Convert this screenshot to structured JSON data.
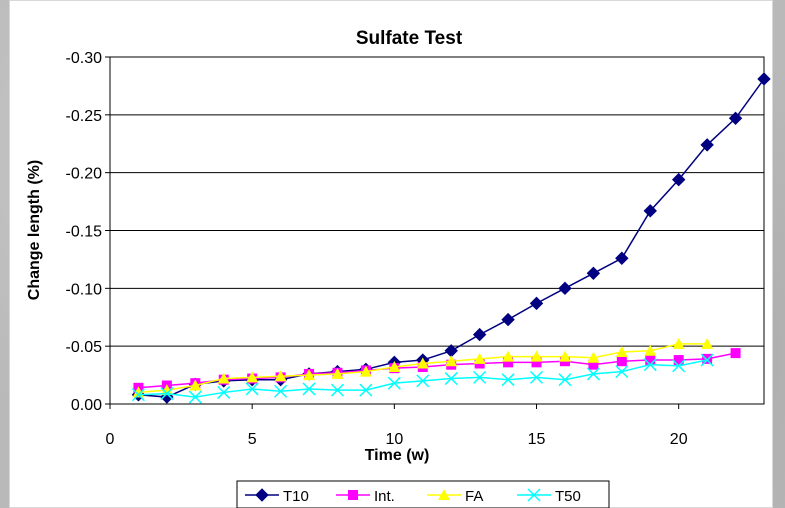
{
  "chart_data": {
    "type": "line",
    "title": "Sulfate Test",
    "xlabel": "Time (w)",
    "ylabel": "Change length (%)",
    "xlim": [
      0,
      23
    ],
    "ylim": [
      0,
      -0.3
    ],
    "y_axis_reversed": true,
    "x_ticks": [
      0,
      5,
      10,
      15,
      20
    ],
    "x_tick_labels": [
      "0",
      "5",
      "10",
      "15",
      "20"
    ],
    "y_ticks": [
      0,
      -0.05,
      -0.1,
      -0.15,
      -0.2,
      -0.25,
      -0.3
    ],
    "y_tick_labels": [
      "0.00",
      "-0.05",
      "-0.10",
      "-0.15",
      "-0.20",
      "-0.25",
      "-0.30"
    ],
    "grid": "horizontal",
    "legend_position": "bottom",
    "series": [
      {
        "name": "T10",
        "color": "#000080",
        "marker": "diamond",
        "x": [
          1,
          2,
          3,
          4,
          5,
          6,
          7,
          8,
          9,
          10,
          11,
          12,
          13,
          14,
          15,
          16,
          17,
          18,
          19,
          20,
          21,
          22,
          23
        ],
        "y": [
          -0.008,
          -0.006,
          -0.017,
          -0.02,
          -0.021,
          -0.021,
          -0.026,
          -0.028,
          -0.03,
          -0.036,
          -0.038,
          -0.046,
          -0.06,
          -0.073,
          -0.087,
          -0.1,
          -0.113,
          -0.126,
          -0.167,
          -0.194,
          -0.224,
          -0.247,
          -0.281
        ]
      },
      {
        "name": "Int.",
        "color": "#ff00ff",
        "marker": "square",
        "x": [
          1,
          2,
          3,
          4,
          5,
          6,
          7,
          8,
          9,
          10,
          11,
          12,
          13,
          14,
          15,
          16,
          17,
          18,
          19,
          20,
          21,
          22
        ],
        "y": [
          -0.014,
          -0.016,
          -0.018,
          -0.021,
          -0.022,
          -0.023,
          -0.026,
          -0.027,
          -0.029,
          -0.031,
          -0.032,
          -0.034,
          -0.035,
          -0.036,
          -0.036,
          -0.037,
          -0.034,
          -0.037,
          -0.038,
          -0.038,
          -0.039,
          -0.044
        ]
      },
      {
        "name": "FA",
        "color": "#ffff00",
        "marker": "triangle",
        "x": [
          1,
          2,
          3,
          4,
          5,
          6,
          7,
          8,
          9,
          10,
          11,
          12,
          13,
          14,
          15,
          16,
          17,
          18,
          19,
          20,
          21
        ],
        "y": [
          -0.01,
          -0.012,
          -0.016,
          -0.022,
          -0.023,
          -0.024,
          -0.025,
          -0.026,
          -0.028,
          -0.032,
          -0.035,
          -0.037,
          -0.039,
          -0.041,
          -0.041,
          -0.041,
          -0.04,
          -0.045,
          -0.046,
          -0.052,
          -0.052
        ]
      },
      {
        "name": "T50",
        "color": "#00ffff",
        "marker": "x",
        "x": [
          1,
          2,
          3,
          4,
          5,
          6,
          7,
          8,
          9,
          10,
          11,
          12,
          13,
          14,
          15,
          16,
          17,
          18,
          19,
          20,
          21
        ],
        "y": [
          -0.008,
          -0.009,
          -0.006,
          -0.01,
          -0.013,
          -0.011,
          -0.013,
          -0.012,
          -0.012,
          -0.018,
          -0.02,
          -0.022,
          -0.023,
          -0.021,
          -0.023,
          -0.021,
          -0.026,
          -0.028,
          -0.034,
          -0.033,
          -0.038
        ]
      }
    ]
  }
}
